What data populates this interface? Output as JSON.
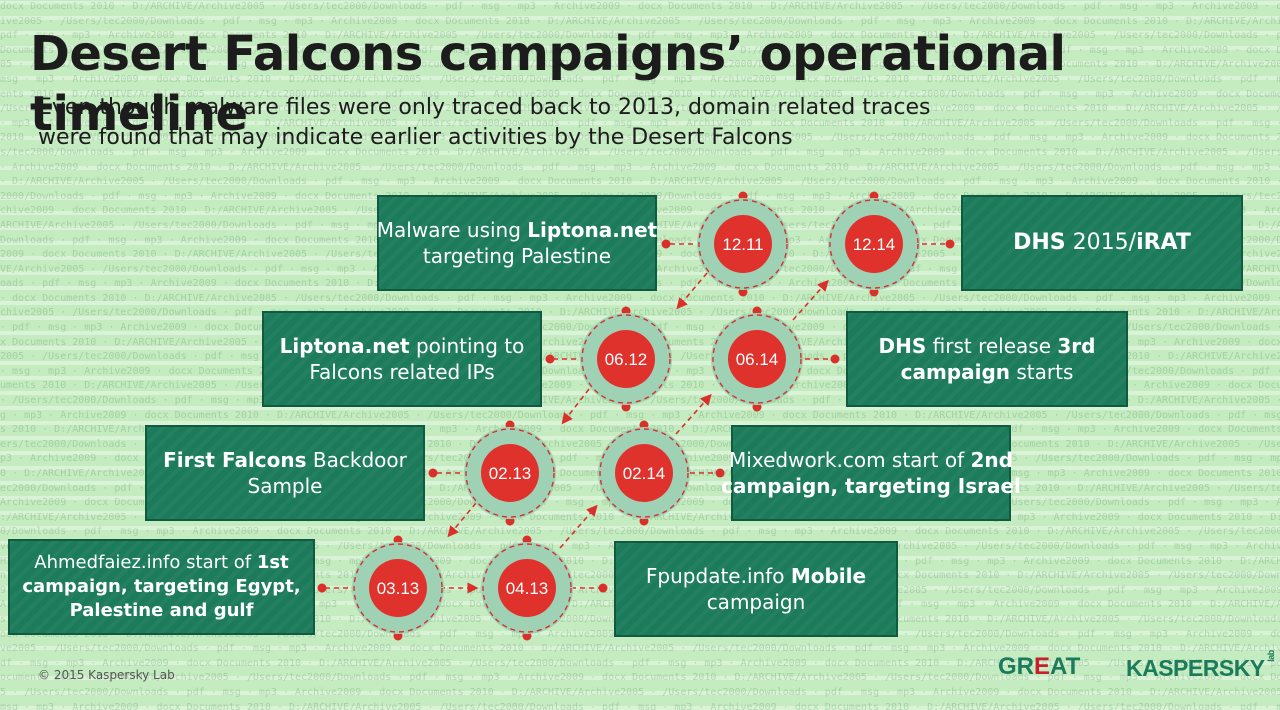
{
  "title": "Desert Falcons campaigns’ operational timeline",
  "subtitle": {
    "line1": "Even though malware files were only traced back to 2013, domain related traces",
    "line2": "were found that may indicate earlier activities by the Desert Falcons"
  },
  "nodes": {
    "n1211": "12.11",
    "n0612": "06.12",
    "n0213": "02.13",
    "n0313": "03.13",
    "n0413": "04.13",
    "n0214": "02.14",
    "n0614": "06.14",
    "n1214": "12.14"
  },
  "events": {
    "malware_liptona": {
      "l1a": "Malware using ",
      "l1b": "Liptona.net",
      "l2": "targeting Palestine"
    },
    "liptona_ips": {
      "l1a": "Liptona.net",
      "l1b": " pointing to",
      "l2": "Falcons related IPs"
    },
    "first_backdoor": {
      "l1a": "First Falcons",
      "l1b": " Backdoor",
      "l2": "Sample"
    },
    "ahmedfaiez": {
      "l1a": "Ahmedfaiez.info start of ",
      "l1b": "1st",
      "l2": "campaign, targeting Egypt,",
      "l3": "Palestine and gulf"
    },
    "fpupdate": {
      "l1a": "Fpupdate.info ",
      "l1b": "Mobile",
      "l2": "campaign"
    },
    "mixedwork": {
      "l1a": "Mixedwork.com start of ",
      "l1b": "2nd",
      "l2": "campaign, targeting Israel"
    },
    "dhs_3rd": {
      "l1a": "DHS",
      "l1b": " first release ",
      "l1c": "3rd",
      "l2": "campaign",
      "l2b": " starts"
    },
    "dhs_irat": {
      "l1a": "DHS",
      "l1b": " 2015/",
      "l1c": "iRAT"
    }
  },
  "footer": {
    "copyright": "© 2015 Kaspersky Lab",
    "logo_great_a": "GR",
    "logo_great_e": "E",
    "logo_great_b": "AT",
    "logo_kaspersky": "KASPERSKY",
    "logo_kaspersky_lab": "lab"
  },
  "colors": {
    "box_green": "#1b7b5b",
    "node_red": "#e0322c",
    "ring_green": "#9fd2b5",
    "line_red": "#d9302a"
  }
}
